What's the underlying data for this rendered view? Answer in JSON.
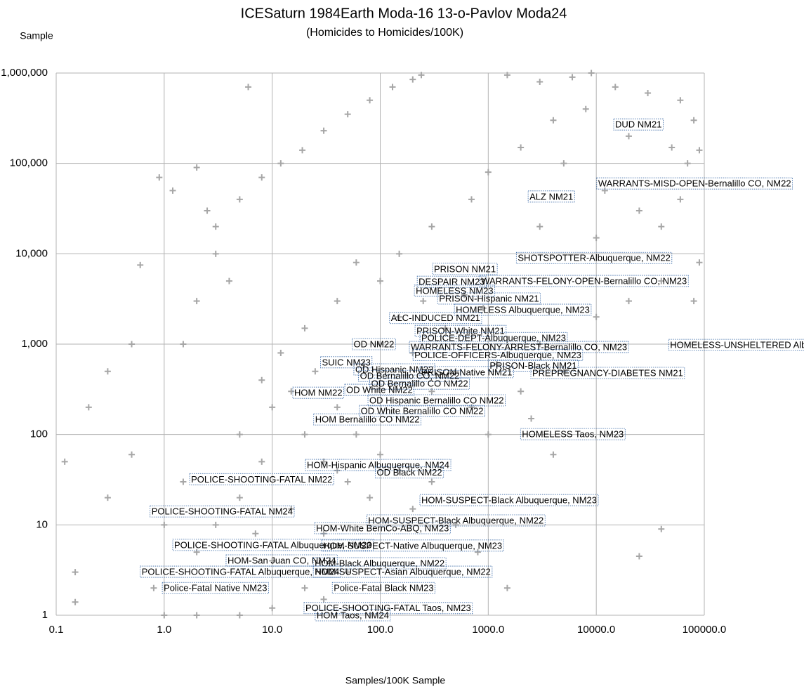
{
  "chart_data": {
    "type": "scatter",
    "title": "ICESaturn 1984Earth Moda-16 13-o-Pavlov Moda24",
    "subtitle": "(Homicides to Homicides/100K)",
    "x_label": "Samples/100K Sample",
    "y_label": "Sample",
    "xscale": "log",
    "yscale": "log",
    "grid": true,
    "color": "#a6a6a6",
    "xlim": [
      0.1,
      100000
    ],
    "ylim": [
      1,
      1000000
    ],
    "xticks": [
      0.1,
      {
        "value": 1,
        "label": "1.0"
      },
      {
        "value": 10,
        "label": "10.0"
      },
      {
        "value": 100,
        "label": "100.0"
      },
      {
        "value": 1000,
        "label": "1000.0"
      },
      {
        "value": 10000,
        "label": "10000.0"
      },
      {
        "value": 100000,
        "label": "100000.0"
      }
    ],
    "yticks": [
      1,
      10,
      100,
      {
        "value": 1000,
        "label": "1,000"
      },
      {
        "value": 10000,
        "label": "10,000"
      },
      {
        "value": 100000,
        "label": "100,000"
      },
      {
        "value": 1000000,
        "label": "1,000,000"
      }
    ],
    "x": [
      3,
      5,
      8,
      12,
      19,
      30,
      50,
      80,
      130,
      200,
      240,
      1500,
      3000,
      6000,
      9000,
      15000,
      30000,
      60000,
      80000,
      20000,
      50000,
      70000,
      90000,
      4000,
      8000,
      2000,
      1000,
      5000,
      12000,
      25000,
      40000,
      700,
      300,
      3000,
      10000,
      60000,
      90000,
      80000,
      40000,
      0.12,
      0.15,
      0.2,
      0.3,
      0.5,
      0.6,
      0.9,
      1.2,
      2,
      2.5,
      0.15,
      0.3,
      0.5,
      0.8,
      1.5,
      2,
      3,
      4,
      6,
      5,
      8,
      10,
      15,
      20,
      25,
      30,
      40,
      50,
      60,
      80,
      100,
      150,
      200,
      300,
      500,
      800,
      1500,
      2,
      3,
      5,
      7,
      10,
      15,
      20,
      30,
      40,
      50,
      70,
      100,
      150,
      200,
      300,
      500,
      700,
      1000,
      2000,
      3000,
      5000,
      10000,
      20000,
      1,
      1.5,
      1,
      2,
      5,
      10,
      30,
      8,
      12,
      20,
      40,
      60,
      100,
      150,
      250,
      400,
      600,
      900,
      1200,
      2500,
      4000,
      40000,
      25000
    ],
    "y": [
      20000,
      40000,
      70000,
      100000,
      140000,
      230000,
      350000,
      500000,
      700000,
      850000,
      950000,
      950000,
      800000,
      900000,
      1000000,
      700000,
      600000,
      500000,
      300000,
      200000,
      150000,
      100000,
      140000,
      300000,
      400000,
      150000,
      80000,
      100000,
      50000,
      30000,
      20000,
      40000,
      20000,
      20000,
      15000,
      40000,
      8000,
      3000,
      5000,
      50,
      1.4,
      200,
      500,
      1000,
      7500,
      70000,
      50000,
      90000,
      30000,
      3,
      20,
      60,
      2,
      1000,
      3000,
      10000,
      5000,
      700000,
      100,
      50,
      200,
      300,
      100,
      500,
      50,
      200,
      30,
      100,
      20,
      60,
      40,
      15,
      30,
      10,
      5,
      2,
      5,
      10,
      20,
      8,
      4,
      15,
      2,
      8,
      40,
      3,
      600,
      1000,
      2000,
      800,
      300,
      500,
      200,
      100,
      300,
      1000,
      500,
      2000,
      3000,
      10,
      30,
      1,
      1,
      1,
      1.2,
      1.5,
      400,
      800,
      1500,
      3000,
      8000,
      5000,
      10000,
      3000,
      1500,
      3500,
      2500,
      600,
      150,
      60,
      9,
      4.5
    ],
    "annotations": [
      {
        "text": "DUD NM21",
        "x": 14500,
        "y": 270000
      },
      {
        "text": "WARRANTS-MISD-OPEN-Bernalillo CO, NM22",
        "x": 10100,
        "y": 60000
      },
      {
        "text": "ALZ NM21",
        "x": 2340,
        "y": 43000
      },
      {
        "text": "SHOTSPOTTER-Albuquerque, NM22",
        "x": 1820,
        "y": 9000
      },
      {
        "text": "PRISON NM21",
        "x": 305,
        "y": 6800
      },
      {
        "text": "DESPAIR NM23",
        "x": 220,
        "y": 4900
      },
      {
        "text": "WARRANTS-FELONY-OPEN-Bernalillo CO, NM23",
        "x": 834,
        "y": 5000
      },
      {
        "text": "HOMELESS NM23",
        "x": 207,
        "y": 3900
      },
      {
        "text": "PRISON-Hispanic NM21",
        "x": 340,
        "y": 3200
      },
      {
        "text": "HOMELESS Albuquerque, NM23",
        "x": 486,
        "y": 2400
      },
      {
        "text": "ALC-INDUCED NM21",
        "x": 122,
        "y": 1950
      },
      {
        "text": "PRISON-White NM21",
        "x": 210,
        "y": 1400
      },
      {
        "text": "POLICE-DEPT-Albuquerque, NM23",
        "x": 233,
        "y": 1170
      },
      {
        "text": "OD NM22",
        "x": 55,
        "y": 1000
      },
      {
        "text": "WARRANTS-FELONY-ARREST-Bernalillo CO, NM23",
        "x": 186,
        "y": 930
      },
      {
        "text": "HOMELESS-UNSHELTERED Alb",
        "x": 46800,
        "y": 980
      },
      {
        "text": "POLICE-OFFICERS-Albuquerque, NM23",
        "x": 201,
        "y": 760
      },
      {
        "text": "PRISON-Black NM21",
        "x": 1000,
        "y": 580
      },
      {
        "text": "SUIC NM23",
        "x": 28,
        "y": 630
      },
      {
        "text": "OD Hispanic NM22",
        "x": 57,
        "y": 525
      },
      {
        "text": "PRISON-Native NM21",
        "x": 233,
        "y": 490
      },
      {
        "text": "PREPREGNANCY-DIABETES NM21",
        "x": 2480,
        "y": 480
      },
      {
        "text": "OD Bernalillo CO, NM22",
        "x": 63,
        "y": 445
      },
      {
        "text": "OD Bernalillo CO NM22",
        "x": 80,
        "y": 366
      },
      {
        "text": "HOM NM22",
        "x": 15.5,
        "y": 290
      },
      {
        "text": "OD White NM22",
        "x": 47,
        "y": 312
      },
      {
        "text": "OD Hispanic Bernalillo CO NM22",
        "x": 77,
        "y": 239
      },
      {
        "text": "OD White Bernalillo CO NM22",
        "x": 64,
        "y": 182
      },
      {
        "text": "HOM Bernalillo CO NM22",
        "x": 24.2,
        "y": 147
      },
      {
        "text": "HOMELESS Taos, NM23",
        "x": 1990,
        "y": 101
      },
      {
        "text": "HOM-Hispanic Albuquerque, NM24",
        "x": 20.3,
        "y": 46
      },
      {
        "text": "OD Black NM22",
        "x": 90,
        "y": 38
      },
      {
        "text": "POLICE-SHOOTING-FATAL NM22",
        "x": 1.72,
        "y": 32
      },
      {
        "text": "HOM-SUSPECT-Black Albuquerque, NM23",
        "x": 233,
        "y": 18.8
      },
      {
        "text": "POLICE-SHOOTING-FATAL NM24",
        "x": 0.74,
        "y": 14.1
      },
      {
        "text": "HOM-SUSPECT-Black Albuquerque, NM22",
        "x": 75,
        "y": 11.2
      },
      {
        "text": "HOM-White BernCo-ABQ, NM23",
        "x": 24.7,
        "y": 9.2
      },
      {
        "text": "POLICE-SHOOTING-FATAL Albuquerque, NM23",
        "x": 1.2,
        "y": 6
      },
      {
        "text": "HOM-SUSPECT-Native Albuquerque, NM23",
        "x": 28.7,
        "y": 5.9
      },
      {
        "text": "HOM-San Juan CO, NM24",
        "x": 3.74,
        "y": 4.04
      },
      {
        "text": "HOM-Black Albuquerque, NM22",
        "x": 24,
        "y": 3.76
      },
      {
        "text": "POLICE-SHOOTING-FATAL Albuquerque, NM24",
        "x": 0.6,
        "y": 3.03
      },
      {
        "text": "HOM-SUSPECT-Asian Albuquerque, NM22",
        "x": 24,
        "y": 3.03
      },
      {
        "text": "Police-Fatal Native NM23",
        "x": 0.96,
        "y": 2.0
      },
      {
        "text": "Police-Fatal Black NM23",
        "x": 36,
        "y": 2.0
      },
      {
        "text": "POLICE-SHOOTING-FATAL Taos, NM23",
        "x": 19.7,
        "y": 1.2
      },
      {
        "text": "HOM Taos, NM24",
        "x": 25,
        "y": 1
      }
    ]
  }
}
